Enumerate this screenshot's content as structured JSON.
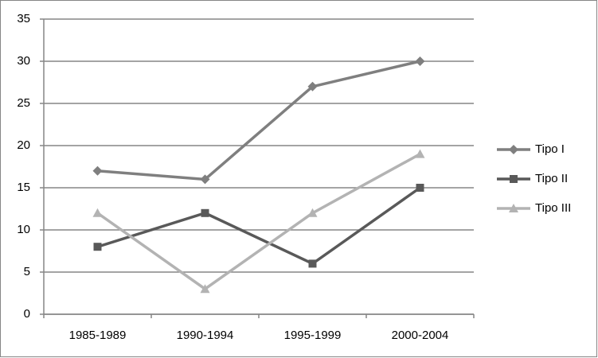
{
  "chart_data": {
    "type": "line",
    "categories": [
      "1985-1989",
      "1990-1994",
      "1995-1999",
      "2000-2004"
    ],
    "series": [
      {
        "name": "Tipo I",
        "color": "#7f7f7f",
        "marker": "diamond",
        "values": [
          17,
          16,
          27,
          30
        ]
      },
      {
        "name": "Tipo II",
        "color": "#595959",
        "marker": "square",
        "values": [
          8,
          12,
          6,
          15
        ]
      },
      {
        "name": "Tipo III",
        "color": "#b3b3b3",
        "marker": "triangle",
        "values": [
          12,
          3,
          12,
          19
        ]
      }
    ],
    "ylim": [
      0,
      35
    ],
    "yticks": [
      0,
      5,
      10,
      15,
      20,
      25,
      30,
      35
    ],
    "grid": true,
    "legend": "right"
  }
}
